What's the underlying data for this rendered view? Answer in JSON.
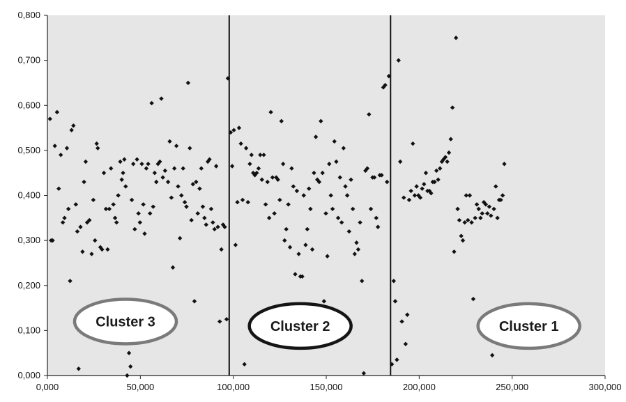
{
  "chart_data": {
    "type": "scatter",
    "title": "",
    "xlabel": "",
    "ylabel": "",
    "xlim": [
      0,
      300000
    ],
    "ylim": [
      0,
      0.8
    ],
    "x_ticks": [
      {
        "value": 0,
        "label": "0,000"
      },
      {
        "value": 50000,
        "label": "50,000"
      },
      {
        "value": 100000,
        "label": "100,000"
      },
      {
        "value": 150000,
        "label": "150,000"
      },
      {
        "value": 200000,
        "label": "200,000"
      },
      {
        "value": 250000,
        "label": "250,000"
      },
      {
        "value": 300000,
        "label": "300,000"
      }
    ],
    "y_ticks": [
      {
        "value": 0.0,
        "label": "0,000"
      },
      {
        "value": 0.1,
        "label": "0,100"
      },
      {
        "value": 0.2,
        "label": "0,200"
      },
      {
        "value": 0.3,
        "label": "0,300"
      },
      {
        "value": 0.4,
        "label": "0,400"
      },
      {
        "value": 0.5,
        "label": "0,500"
      },
      {
        "value": 0.6,
        "label": "0,600"
      },
      {
        "value": 0.7,
        "label": "0,700"
      },
      {
        "value": 0.8,
        "label": "0,800"
      }
    ],
    "grid": false,
    "plot_background": "#e6e6e6",
    "marker_color": "#111111",
    "dividers": [
      97800,
      184600
    ],
    "clusters": [
      {
        "label": "Cluster 3",
        "x": 42000,
        "y": 0.12,
        "outline_color": "#7a7a7a"
      },
      {
        "label": "Cluster 2",
        "x": 136000,
        "y": 0.11,
        "outline_color": "#151515"
      },
      {
        "label": "Cluster 1",
        "x": 259000,
        "y": 0.11,
        "outline_color": "#7a7a7a"
      }
    ],
    "points": [
      [
        1400,
        0.57
      ],
      [
        2000,
        0.3
      ],
      [
        2800,
        0.3
      ],
      [
        4000,
        0.51
      ],
      [
        5200,
        0.585
      ],
      [
        6100,
        0.415
      ],
      [
        7200,
        0.49
      ],
      [
        8300,
        0.34
      ],
      [
        9200,
        0.35
      ],
      [
        10500,
        0.505
      ],
      [
        11300,
        0.37
      ],
      [
        12200,
        0.21
      ],
      [
        13000,
        0.545
      ],
      [
        14000,
        0.555
      ],
      [
        15300,
        0.38
      ],
      [
        16100,
        0.32
      ],
      [
        16800,
        0.015
      ],
      [
        17800,
        0.33
      ],
      [
        18900,
        0.275
      ],
      [
        19700,
        0.43
      ],
      [
        20600,
        0.475
      ],
      [
        21400,
        0.34
      ],
      [
        22600,
        0.345
      ],
      [
        23800,
        0.27
      ],
      [
        24700,
        0.39
      ],
      [
        25600,
        0.3
      ],
      [
        26500,
        0.515
      ],
      [
        27100,
        0.505
      ],
      [
        28500,
        0.285
      ],
      [
        29400,
        0.28
      ],
      [
        30400,
        0.45
      ],
      [
        31500,
        0.37
      ],
      [
        32400,
        0.28
      ],
      [
        33300,
        0.37
      ],
      [
        34200,
        0.46
      ],
      [
        35500,
        0.38
      ],
      [
        36400,
        0.35
      ],
      [
        37200,
        0.34
      ],
      [
        38100,
        0.4
      ],
      [
        39200,
        0.475
      ],
      [
        40000,
        0.435
      ],
      [
        40700,
        0.45
      ],
      [
        41400,
        0.48
      ],
      [
        42100,
        0.42
      ],
      [
        42900,
        0.0
      ],
      [
        43900,
        0.05
      ],
      [
        44700,
        0.02
      ],
      [
        45400,
        0.39
      ],
      [
        46200,
        0.47
      ],
      [
        47000,
        0.325
      ],
      [
        48200,
        0.48
      ],
      [
        49000,
        0.36
      ],
      [
        49800,
        0.34
      ],
      [
        50800,
        0.47
      ],
      [
        51600,
        0.38
      ],
      [
        52300,
        0.315
      ],
      [
        53200,
        0.46
      ],
      [
        54200,
        0.47
      ],
      [
        55200,
        0.36
      ],
      [
        56100,
        0.605
      ],
      [
        56900,
        0.375
      ],
      [
        57700,
        0.45
      ],
      [
        58600,
        0.43
      ],
      [
        59500,
        0.47
      ],
      [
        60500,
        0.475
      ],
      [
        61300,
        0.615
      ],
      [
        62100,
        0.44
      ],
      [
        63300,
        0.455
      ],
      [
        64100,
        0.1
      ],
      [
        64900,
        0.43
      ],
      [
        65800,
        0.52
      ],
      [
        66700,
        0.395
      ],
      [
        67500,
        0.24
      ],
      [
        68300,
        0.46
      ],
      [
        69400,
        0.51
      ],
      [
        70300,
        0.42
      ],
      [
        71300,
        0.305
      ],
      [
        72100,
        0.4
      ],
      [
        73000,
        0.46
      ],
      [
        73900,
        0.385
      ],
      [
        74800,
        0.375
      ],
      [
        75700,
        0.65
      ],
      [
        76600,
        0.505
      ],
      [
        77500,
        0.345
      ],
      [
        78300,
        0.425
      ],
      [
        79100,
        0.165
      ],
      [
        80000,
        0.43
      ],
      [
        80900,
        0.36
      ],
      [
        81900,
        0.415
      ],
      [
        82800,
        0.46
      ],
      [
        83600,
        0.375
      ],
      [
        84500,
        0.35
      ],
      [
        85400,
        0.335
      ],
      [
        86300,
        0.475
      ],
      [
        87200,
        0.48
      ],
      [
        88100,
        0.37
      ],
      [
        89000,
        0.34
      ],
      [
        89900,
        0.325
      ],
      [
        90800,
        0.465
      ],
      [
        91700,
        0.33
      ],
      [
        92700,
        0.12
      ],
      [
        93600,
        0.28
      ],
      [
        94500,
        0.335
      ],
      [
        95400,
        0.33
      ],
      [
        96400,
        0.125
      ],
      [
        97100,
        0.66
      ],
      [
        98600,
        0.54
      ],
      [
        99400,
        0.465
      ],
      [
        100300,
        0.545
      ],
      [
        101200,
        0.29
      ],
      [
        102200,
        0.385
      ],
      [
        103100,
        0.55
      ],
      [
        104100,
        0.515
      ],
      [
        105000,
        0.39
      ],
      [
        106000,
        0.025
      ],
      [
        106900,
        0.505
      ],
      [
        107900,
        0.385
      ],
      [
        108900,
        0.47
      ],
      [
        109800,
        0.49
      ],
      [
        110700,
        0.45
      ],
      [
        111600,
        0.445
      ],
      [
        112600,
        0.45
      ],
      [
        113600,
        0.46
      ],
      [
        114500,
        0.49
      ],
      [
        115400,
        0.435
      ],
      [
        116400,
        0.49
      ],
      [
        117400,
        0.38
      ],
      [
        118400,
        0.43
      ],
      [
        119300,
        0.35
      ],
      [
        120200,
        0.585
      ],
      [
        121100,
        0.44
      ],
      [
        122100,
        0.36
      ],
      [
        123100,
        0.44
      ],
      [
        124000,
        0.435
      ],
      [
        125000,
        0.39
      ],
      [
        125900,
        0.565
      ],
      [
        126800,
        0.47
      ],
      [
        127600,
        0.3
      ],
      [
        128500,
        0.325
      ],
      [
        129600,
        0.38
      ],
      [
        130500,
        0.285
      ],
      [
        131400,
        0.46
      ],
      [
        132300,
        0.42
      ],
      [
        133300,
        0.225
      ],
      [
        134200,
        0.41
      ],
      [
        135200,
        0.27
      ],
      [
        136100,
        0.22
      ],
      [
        137100,
        0.22
      ],
      [
        137900,
        0.4
      ],
      [
        138900,
        0.29
      ],
      [
        139800,
        0.325
      ],
      [
        140700,
        0.415
      ],
      [
        141500,
        0.37
      ],
      [
        142500,
        0.28
      ],
      [
        143400,
        0.45
      ],
      [
        144400,
        0.53
      ],
      [
        145200,
        0.435
      ],
      [
        146200,
        0.43
      ],
      [
        147100,
        0.565
      ],
      [
        148000,
        0.45
      ],
      [
        148800,
        0.165
      ],
      [
        149800,
        0.36
      ],
      [
        150600,
        0.265
      ],
      [
        151600,
        0.47
      ],
      [
        152500,
        0.4
      ],
      [
        153400,
        0.37
      ],
      [
        154400,
        0.52
      ],
      [
        155400,
        0.475
      ],
      [
        156400,
        0.35
      ],
      [
        157400,
        0.44
      ],
      [
        158300,
        0.34
      ],
      [
        159300,
        0.505
      ],
      [
        160300,
        0.42
      ],
      [
        161300,
        0.4
      ],
      [
        162300,
        0.32
      ],
      [
        163300,
        0.435
      ],
      [
        164300,
        0.37
      ],
      [
        165300,
        0.27
      ],
      [
        166300,
        0.295
      ],
      [
        167200,
        0.28
      ],
      [
        168200,
        0.34
      ],
      [
        169200,
        0.21
      ],
      [
        170200,
        0.005
      ],
      [
        171100,
        0.455
      ],
      [
        172100,
        0.46
      ],
      [
        173000,
        0.58
      ],
      [
        174000,
        0.37
      ],
      [
        174900,
        0.44
      ],
      [
        175900,
        0.44
      ],
      [
        176900,
        0.35
      ],
      [
        177800,
        0.33
      ],
      [
        178800,
        0.445
      ],
      [
        179800,
        0.445
      ],
      [
        180700,
        0.64
      ],
      [
        181700,
        0.645
      ],
      [
        182700,
        0.43
      ],
      [
        183700,
        0.665
      ],
      [
        185300,
        0.025
      ],
      [
        186300,
        0.21
      ],
      [
        187100,
        0.165
      ],
      [
        188000,
        0.035
      ],
      [
        188900,
        0.7
      ],
      [
        189800,
        0.475
      ],
      [
        190700,
        0.12
      ],
      [
        191700,
        0.395
      ],
      [
        192700,
        0.07
      ],
      [
        193600,
        0.135
      ],
      [
        194600,
        0.39
      ],
      [
        195600,
        0.41
      ],
      [
        196600,
        0.515
      ],
      [
        197600,
        0.4
      ],
      [
        198600,
        0.42
      ],
      [
        199600,
        0.4
      ],
      [
        200600,
        0.395
      ],
      [
        201600,
        0.415
      ],
      [
        202600,
        0.425
      ],
      [
        203600,
        0.45
      ],
      [
        204500,
        0.41
      ],
      [
        205500,
        0.41
      ],
      [
        206400,
        0.405
      ],
      [
        207300,
        0.43
      ],
      [
        208300,
        0.43
      ],
      [
        209300,
        0.455
      ],
      [
        210200,
        0.435
      ],
      [
        211200,
        0.46
      ],
      [
        212200,
        0.475
      ],
      [
        213100,
        0.48
      ],
      [
        214100,
        0.485
      ],
      [
        215100,
        0.475
      ],
      [
        216000,
        0.495
      ],
      [
        217000,
        0.525
      ],
      [
        217900,
        0.595
      ],
      [
        218800,
        0.275
      ],
      [
        219800,
        0.75
      ],
      [
        220700,
        0.37
      ],
      [
        221600,
        0.345
      ],
      [
        222600,
        0.31
      ],
      [
        223500,
        0.3
      ],
      [
        224500,
        0.34
      ],
      [
        225300,
        0.4
      ],
      [
        226200,
        0.345
      ],
      [
        227200,
        0.4
      ],
      [
        228200,
        0.34
      ],
      [
        229100,
        0.17
      ],
      [
        230100,
        0.35
      ],
      [
        231000,
        0.38
      ],
      [
        232000,
        0.37
      ],
      [
        233000,
        0.35
      ],
      [
        233900,
        0.36
      ],
      [
        234800,
        0.385
      ],
      [
        235800,
        0.38
      ],
      [
        236700,
        0.36
      ],
      [
        237700,
        0.375
      ],
      [
        238600,
        0.355
      ],
      [
        239300,
        0.045
      ],
      [
        240200,
        0.37
      ],
      [
        241200,
        0.42
      ],
      [
        242100,
        0.35
      ],
      [
        243000,
        0.39
      ],
      [
        243900,
        0.39
      ],
      [
        244900,
        0.4
      ],
      [
        245800,
        0.47
      ]
    ]
  }
}
